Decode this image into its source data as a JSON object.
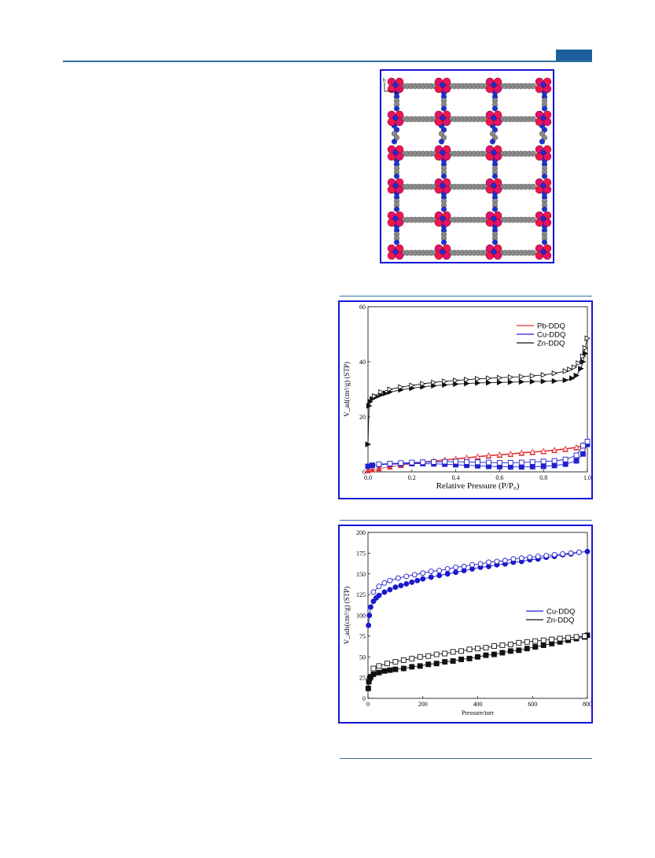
{
  "page": {
    "accent_color": "#1c5f9c",
    "frame_color": "#1515d6"
  },
  "crystal_figure": {
    "axis_labels": {
      "b": "b",
      "a": "a"
    },
    "colors": {
      "metal": "#e0126a",
      "oxygen": "#f2164e",
      "carbon": "#8a8a8a",
      "nitrogen": "#1a2fd6"
    }
  },
  "chart_data": [
    {
      "type": "scatter",
      "title": "",
      "xlabel": "Relative Pressure (P/P₀)",
      "ylabel": "V_ad(cm³/g) (STP)",
      "xlim": [
        0,
        1.0
      ],
      "ylim": [
        0,
        60
      ],
      "x_ticks": [
        "0.0",
        "0.2",
        "0.4",
        "0.6",
        "0.8",
        "1.0"
      ],
      "y_ticks": [
        "0",
        "20",
        "40",
        "60"
      ],
      "legend_position": "top-right",
      "series": [
        {
          "name": "Pb-DDQ",
          "color": "#e03030",
          "marker": "triangle",
          "adsorption_x": [
            0.0,
            0.02,
            0.05,
            0.1,
            0.15,
            0.2,
            0.25,
            0.3,
            0.35,
            0.4,
            0.45,
            0.5,
            0.55,
            0.6,
            0.65,
            0.7,
            0.75,
            0.8,
            0.85,
            0.9,
            0.95,
            0.98,
            1.0
          ],
          "adsorption_y": [
            0.5,
            0.8,
            1.2,
            1.8,
            2.4,
            3.0,
            3.4,
            3.8,
            4.2,
            4.6,
            5.0,
            5.4,
            5.8,
            6.1,
            6.4,
            6.8,
            7.1,
            7.4,
            7.8,
            8.2,
            8.8,
            9.5,
            10.5
          ],
          "desorption_x": [
            0.98,
            0.95,
            0.9,
            0.85,
            0.8,
            0.75,
            0.7,
            0.65,
            0.6,
            0.55,
            0.5,
            0.45,
            0.4,
            0.35,
            0.3,
            0.25,
            0.2,
            0.15
          ],
          "desorption_y": [
            9.8,
            9.0,
            8.4,
            8.0,
            7.6,
            7.3,
            7.0,
            6.6,
            6.3,
            6.0,
            5.6,
            5.2,
            4.8,
            4.4,
            4.0,
            3.6,
            3.2,
            2.8
          ]
        },
        {
          "name": "Cu-DDQ",
          "color": "#2020d0",
          "marker": "square",
          "adsorption_x": [
            0.0,
            0.02,
            0.05,
            0.1,
            0.15,
            0.2,
            0.25,
            0.3,
            0.35,
            0.4,
            0.45,
            0.5,
            0.55,
            0.6,
            0.65,
            0.7,
            0.75,
            0.8,
            0.85,
            0.9,
            0.95,
            0.98,
            1.0
          ],
          "adsorption_y": [
            2.0,
            2.4,
            2.6,
            2.8,
            2.9,
            3.0,
            3.0,
            2.9,
            2.8,
            2.6,
            2.4,
            2.2,
            2.0,
            1.9,
            1.8,
            1.8,
            1.9,
            2.0,
            2.3,
            2.8,
            4.0,
            6.5,
            10.0
          ],
          "desorption_x": [
            1.0,
            0.98,
            0.95,
            0.9,
            0.85,
            0.8,
            0.75,
            0.7,
            0.65,
            0.6,
            0.55,
            0.5,
            0.45,
            0.4,
            0.35,
            0.3,
            0.25,
            0.2,
            0.15,
            0.1,
            0.05
          ],
          "desorption_y": [
            11.0,
            9.5,
            6.0,
            4.5,
            4.0,
            3.8,
            3.6,
            3.4,
            3.3,
            3.3,
            3.4,
            3.5,
            3.6,
            3.7,
            3.7,
            3.6,
            3.5,
            3.4,
            3.2,
            3.0,
            2.8
          ]
        },
        {
          "name": "Zn-DDQ",
          "color": "#111111",
          "marker": "triangle-right",
          "adsorption_x": [
            0.0,
            0.005,
            0.01,
            0.02,
            0.04,
            0.06,
            0.08,
            0.1,
            0.15,
            0.2,
            0.25,
            0.3,
            0.35,
            0.4,
            0.45,
            0.5,
            0.55,
            0.6,
            0.65,
            0.7,
            0.75,
            0.8,
            0.85,
            0.9,
            0.93,
            0.95,
            0.97,
            0.98,
            0.99
          ],
          "adsorption_y": [
            10.0,
            24.0,
            25.5,
            26.5,
            27.3,
            28.0,
            28.5,
            29.0,
            29.8,
            30.4,
            30.9,
            31.3,
            31.6,
            31.9,
            32.1,
            32.3,
            32.4,
            32.5,
            32.6,
            32.7,
            32.8,
            32.9,
            33.0,
            33.3,
            34.0,
            35.0,
            37.5,
            40.0,
            43.0
          ],
          "desorption_x": [
            1.0,
            0.99,
            0.98,
            0.96,
            0.94,
            0.92,
            0.9,
            0.85,
            0.8,
            0.75,
            0.7,
            0.65,
            0.6,
            0.55,
            0.5,
            0.45,
            0.4,
            0.35,
            0.3,
            0.25,
            0.2,
            0.15,
            0.1,
            0.06,
            0.03
          ],
          "desorption_y": [
            48.5,
            45.0,
            42.0,
            39.5,
            38.0,
            37.2,
            36.6,
            35.8,
            35.2,
            34.9,
            34.6,
            34.4,
            34.2,
            34.0,
            33.8,
            33.5,
            33.2,
            32.9,
            32.5,
            32.0,
            31.4,
            30.8,
            30.0,
            29.0,
            27.5
          ]
        }
      ]
    },
    {
      "type": "scatter",
      "title": "",
      "xlabel": "Pressure/torr",
      "ylabel": "V_ads(cm³/g) (STP)",
      "xlim": [
        0,
        800
      ],
      "ylim": [
        0,
        200
      ],
      "x_ticks": [
        "0",
        "200",
        "400",
        "600",
        "800"
      ],
      "y_ticks": [
        "0",
        "25",
        "50",
        "75",
        "100",
        "125",
        "150",
        "175",
        "200"
      ],
      "legend_position": "right",
      "series": [
        {
          "name": "Cu-DDQ",
          "color": "#1a1acc",
          "marker": "circle",
          "adsorption_x": [
            2,
            5,
            10,
            20,
            30,
            40,
            60,
            80,
            100,
            120,
            140,
            160,
            180,
            200,
            230,
            260,
            290,
            320,
            350,
            380,
            410,
            440,
            470,
            500,
            530,
            560,
            590,
            620,
            650,
            680,
            710,
            740,
            770,
            800
          ],
          "adsorption_y": [
            88,
            100,
            110,
            117,
            121,
            124,
            128,
            131,
            134,
            136,
            138,
            140,
            142,
            144,
            146,
            148,
            150,
            152,
            154,
            156,
            158,
            159,
            161,
            162,
            164,
            165,
            167,
            168,
            170,
            171,
            173,
            174,
            176,
            177
          ],
          "desorption_x": [
            770,
            740,
            710,
            680,
            650,
            620,
            590,
            560,
            530,
            500,
            470,
            440,
            410,
            380,
            350,
            320,
            290,
            260,
            230,
            200,
            170,
            140,
            110,
            80,
            60,
            40,
            20
          ],
          "desorption_y": [
            176,
            175,
            174,
            173,
            172,
            171,
            170,
            169,
            168,
            166,
            165,
            164,
            162,
            161,
            159,
            158,
            156,
            154,
            153,
            151,
            149,
            147,
            145,
            142,
            139,
            135,
            128
          ]
        },
        {
          "name": "Zn-DDQ",
          "color": "#111111",
          "marker": "square",
          "adsorption_x": [
            1,
            3,
            6,
            10,
            20,
            40,
            60,
            80,
            100,
            130,
            160,
            190,
            220,
            250,
            280,
            310,
            340,
            370,
            400,
            430,
            460,
            490,
            520,
            550,
            580,
            610,
            640,
            670,
            700,
            730,
            760,
            790,
            800
          ],
          "adsorption_y": [
            12,
            20,
            24,
            26,
            29,
            31,
            33,
            34,
            35,
            36,
            38,
            39,
            41,
            42,
            44,
            45,
            47,
            48,
            50,
            52,
            53,
            55,
            57,
            58,
            60,
            62,
            64,
            66,
            68,
            70,
            72,
            74,
            76
          ],
          "desorption_x": [
            790,
            760,
            730,
            700,
            670,
            640,
            610,
            580,
            550,
            520,
            490,
            460,
            430,
            400,
            370,
            340,
            310,
            280,
            250,
            220,
            190,
            160,
            130,
            100,
            70,
            40,
            20
          ],
          "desorption_y": [
            75,
            74,
            73,
            72,
            71,
            70,
            69,
            68,
            67,
            65,
            64,
            63,
            61,
            60,
            59,
            57,
            56,
            54,
            53,
            51,
            50,
            48,
            46,
            44,
            42,
            39,
            36
          ]
        }
      ]
    }
  ]
}
